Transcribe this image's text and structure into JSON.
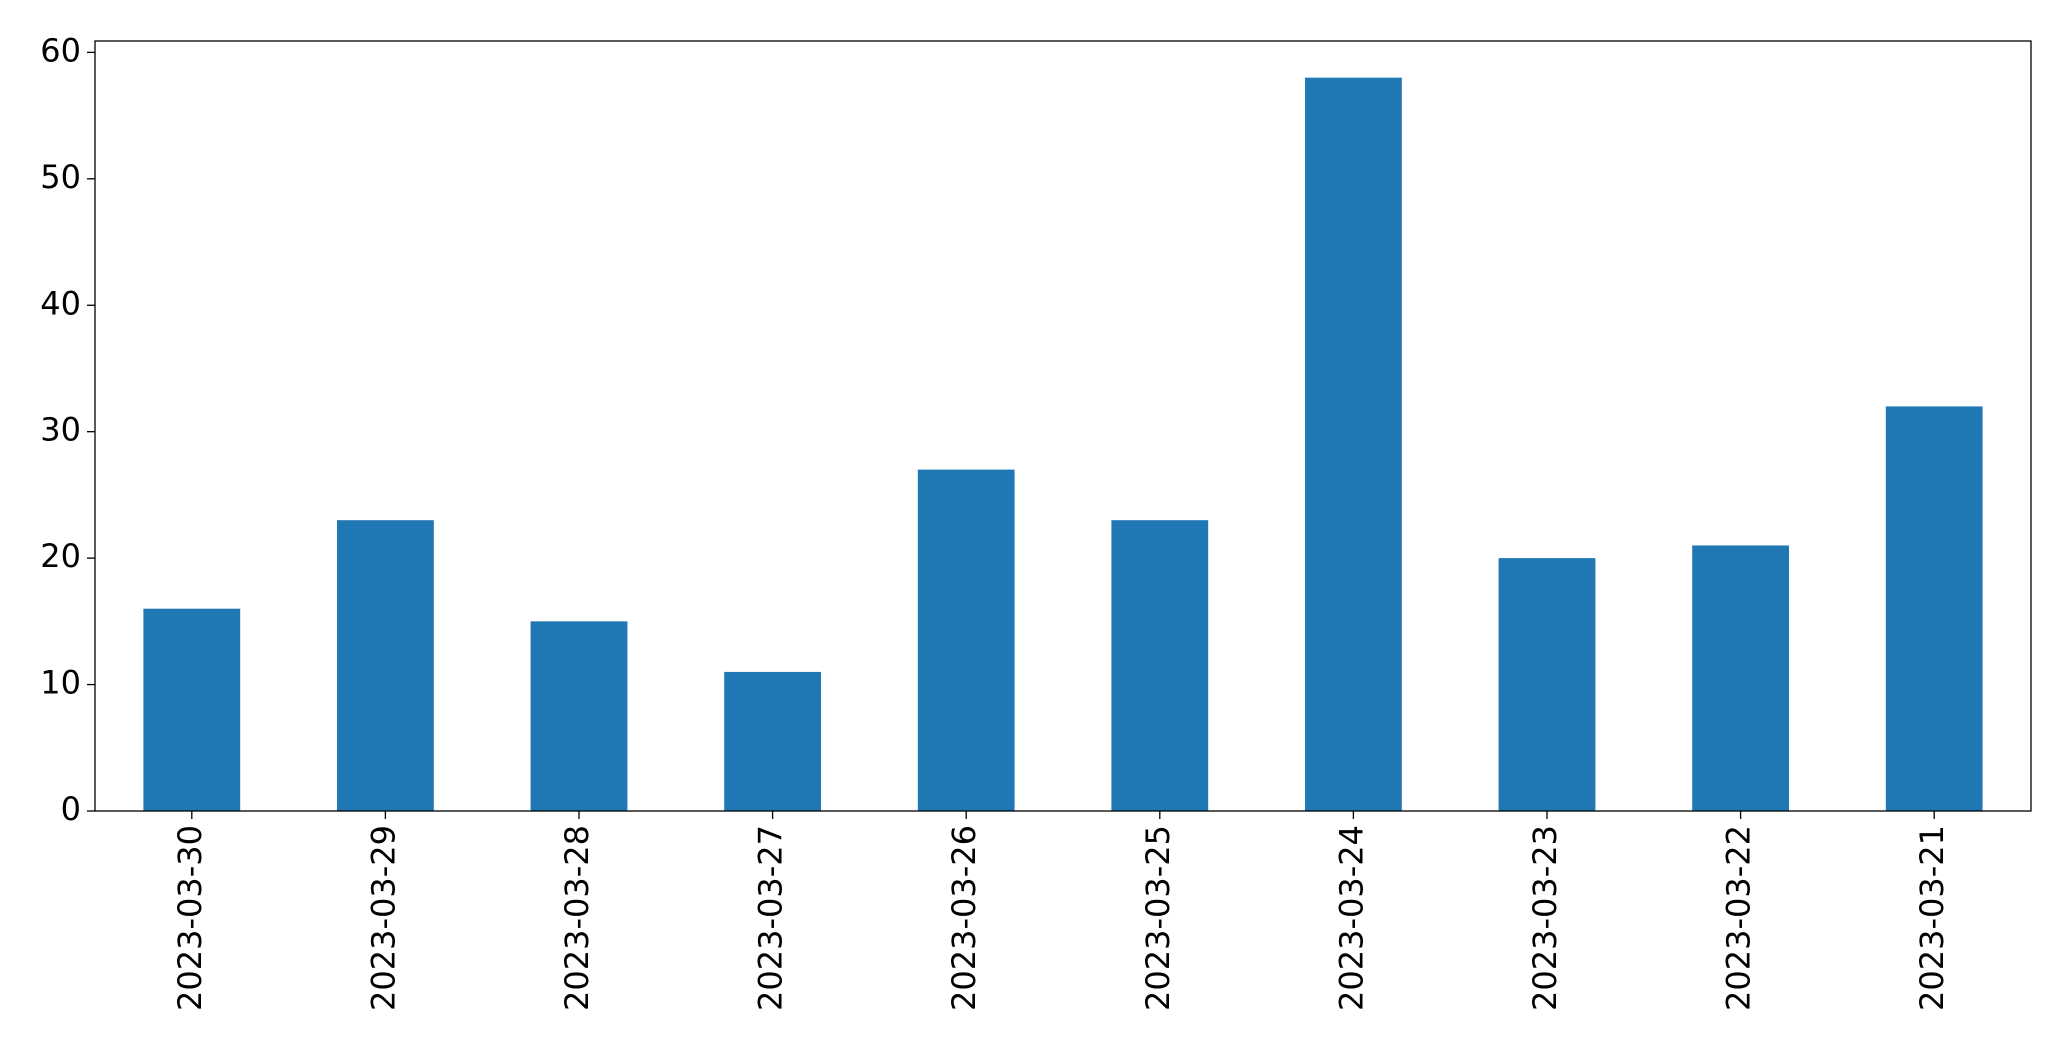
{
  "chart_data": {
    "type": "bar",
    "categories": [
      "2023-03-30",
      "2023-03-29",
      "2023-03-28",
      "2023-03-27",
      "2023-03-26",
      "2023-03-25",
      "2023-03-24",
      "2023-03-23",
      "2023-03-22",
      "2023-03-21"
    ],
    "values": [
      16,
      23,
      15,
      11,
      27,
      23,
      58,
      20,
      21,
      32
    ],
    "color": "#1f77b4",
    "ylim": [
      0,
      60.9
    ],
    "yticks": [
      0,
      10,
      20,
      30,
      40,
      50,
      60
    ],
    "grid": false
  }
}
